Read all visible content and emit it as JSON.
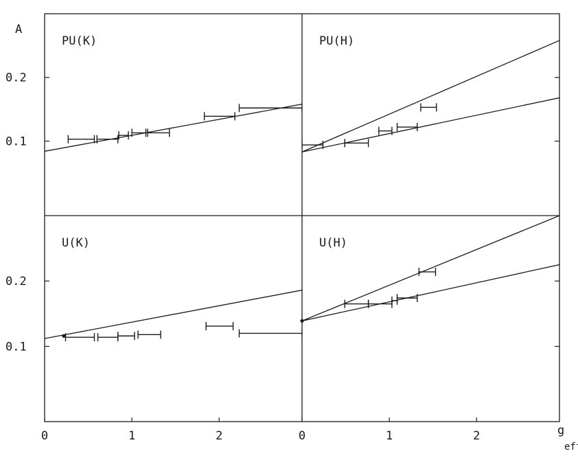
{
  "chart_data": {
    "type": "scatter",
    "y_axis_label": "A",
    "x_axis_label_main": "g",
    "x_axis_label_sub": "eff",
    "y_tick_labels": [
      "0.2",
      "0.1"
    ],
    "y_tick_values": [
      0.2,
      0.1
    ],
    "x_tick_labels": [
      "0",
      "1",
      "2"
    ],
    "x_tick_values": [
      0,
      1,
      2
    ],
    "x_range": [
      0,
      2.95
    ],
    "top_row_ylim": [
      -0.017,
      0.3
    ],
    "bottom_row_ylim": [
      -0.015,
      0.3
    ],
    "panels": [
      {
        "label": "PU(K)",
        "lines": [
          {
            "x": [
              0,
              2.95
            ],
            "y": [
              0.084,
              0.158
            ]
          }
        ],
        "errorbars": [
          {
            "x": [
              0.27,
              0.57
            ],
            "y": 0.103
          },
          {
            "x": [
              0.6,
              0.84
            ],
            "y": 0.103
          },
          {
            "x": [
              0.85,
              0.96
            ],
            "y": 0.109
          },
          {
            "x": [
              1.0,
              1.16
            ],
            "y": 0.113
          },
          {
            "x": [
              1.18,
              1.43
            ],
            "y": 0.113
          },
          {
            "x": [
              1.83,
              2.18
            ],
            "y": 0.139
          },
          {
            "x": [
              2.23,
              2.95
            ],
            "y": 0.152
          }
        ],
        "points": []
      },
      {
        "label": "PU(H)",
        "lines": [
          {
            "x": [
              0,
              2.95
            ],
            "y": [
              0.083,
              0.258
            ]
          },
          {
            "x": [
              0,
              2.95
            ],
            "y": [
              0.083,
              0.168
            ]
          }
        ],
        "errorbars": [
          {
            "x": [
              0.0,
              0.24
            ],
            "y": 0.094
          },
          {
            "x": [
              0.49,
              0.76
            ],
            "y": 0.097
          },
          {
            "x": [
              0.88,
              1.03
            ],
            "y": 0.116
          },
          {
            "x": [
              1.09,
              1.32
            ],
            "y": 0.122
          },
          {
            "x": [
              1.36,
              1.54
            ],
            "y": 0.153
          }
        ],
        "points": []
      },
      {
        "label": "U(K)",
        "lines": [
          {
            "x": [
              0,
              2.95
            ],
            "y": [
              0.112,
              0.186
            ]
          }
        ],
        "errorbars": [
          {
            "x": [
              0.24,
              0.57
            ],
            "y": 0.114
          },
          {
            "x": [
              0.61,
              0.84
            ],
            "y": 0.114
          },
          {
            "x": [
              0.84,
              1.03
            ],
            "y": 0.116
          },
          {
            "x": [
              1.07,
              1.33
            ],
            "y": 0.118
          },
          {
            "x": [
              1.85,
              2.16
            ],
            "y": 0.131
          },
          {
            "x": [
              2.23,
              2.95
            ],
            "y": 0.12
          }
        ],
        "points": [
          {
            "x": 0.22,
            "y": 0.116
          }
        ]
      },
      {
        "label": "U(H)",
        "lines": [
          {
            "x": [
              0,
              2.95
            ],
            "y": [
              0.139,
              0.3
            ]
          },
          {
            "x": [
              0,
              2.95
            ],
            "y": [
              0.139,
              0.225
            ]
          }
        ],
        "errorbars": [
          {
            "x": [
              0.49,
              0.76
            ],
            "y": 0.165
          },
          {
            "x": [
              0.76,
              1.03
            ],
            "y": 0.165
          },
          {
            "x": [
              1.03,
              1.09
            ],
            "y": 0.17
          },
          {
            "x": [
              1.09,
              1.32
            ],
            "y": 0.174
          },
          {
            "x": [
              1.34,
              1.53
            ],
            "y": 0.214
          }
        ],
        "points": [
          {
            "x": 0.0,
            "y": 0.139
          }
        ]
      }
    ]
  }
}
